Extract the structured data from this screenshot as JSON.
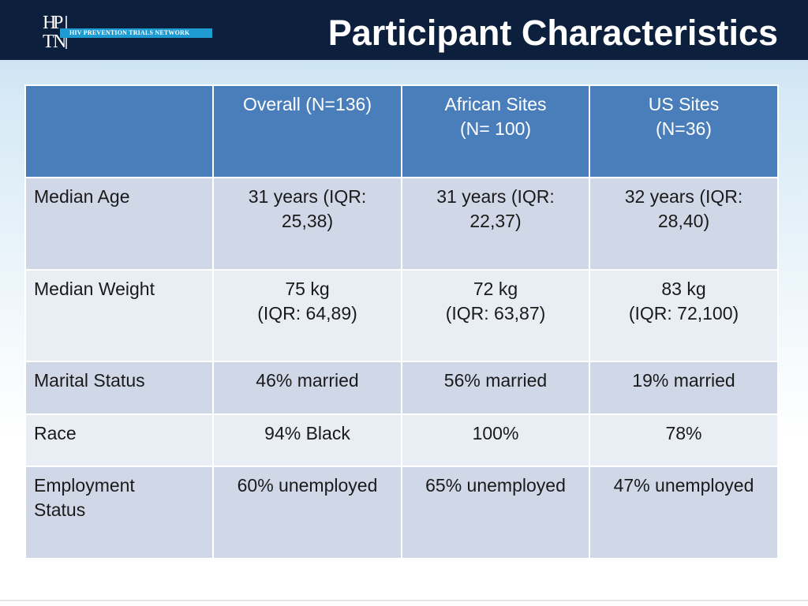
{
  "header": {
    "title": "Participant Characteristics",
    "logo": {
      "letters": [
        "H",
        "P",
        "T",
        "N"
      ],
      "tagline": "HIV PREVENTION TRIALS NETWORK"
    }
  },
  "table": {
    "columns": [
      "",
      "Overall (N=136)",
      "African Sites\n(N= 100)",
      "US Sites\n(N=36)"
    ],
    "rows": [
      {
        "label": "Median Age",
        "values": [
          "31 years (IQR:\n25,38)",
          "31 years (IQR:\n22,37)",
          "32 years (IQR:\n28,40)"
        ]
      },
      {
        "label": "Median Weight",
        "values": [
          "75 kg\n(IQR: 64,89)",
          "72 kg\n(IQR: 63,87)",
          "83 kg\n(IQR: 72,100)"
        ]
      },
      {
        "label": "Marital Status",
        "values": [
          "46% married",
          "56% married",
          "19% married"
        ]
      },
      {
        "label": "Race",
        "values": [
          "94% Black",
          "100%",
          "78%"
        ]
      },
      {
        "label": "Employment\nStatus",
        "values": [
          "60% unemployed",
          "65% unemployed",
          "47% unemployed"
        ]
      }
    ]
  },
  "colors": {
    "title_bar": "#0c1f3d",
    "header_row": "#4a7ebb",
    "row_dark": "#d0d8e8",
    "row_light": "#e9edf4",
    "logo_accent": "#1e9bd0"
  }
}
